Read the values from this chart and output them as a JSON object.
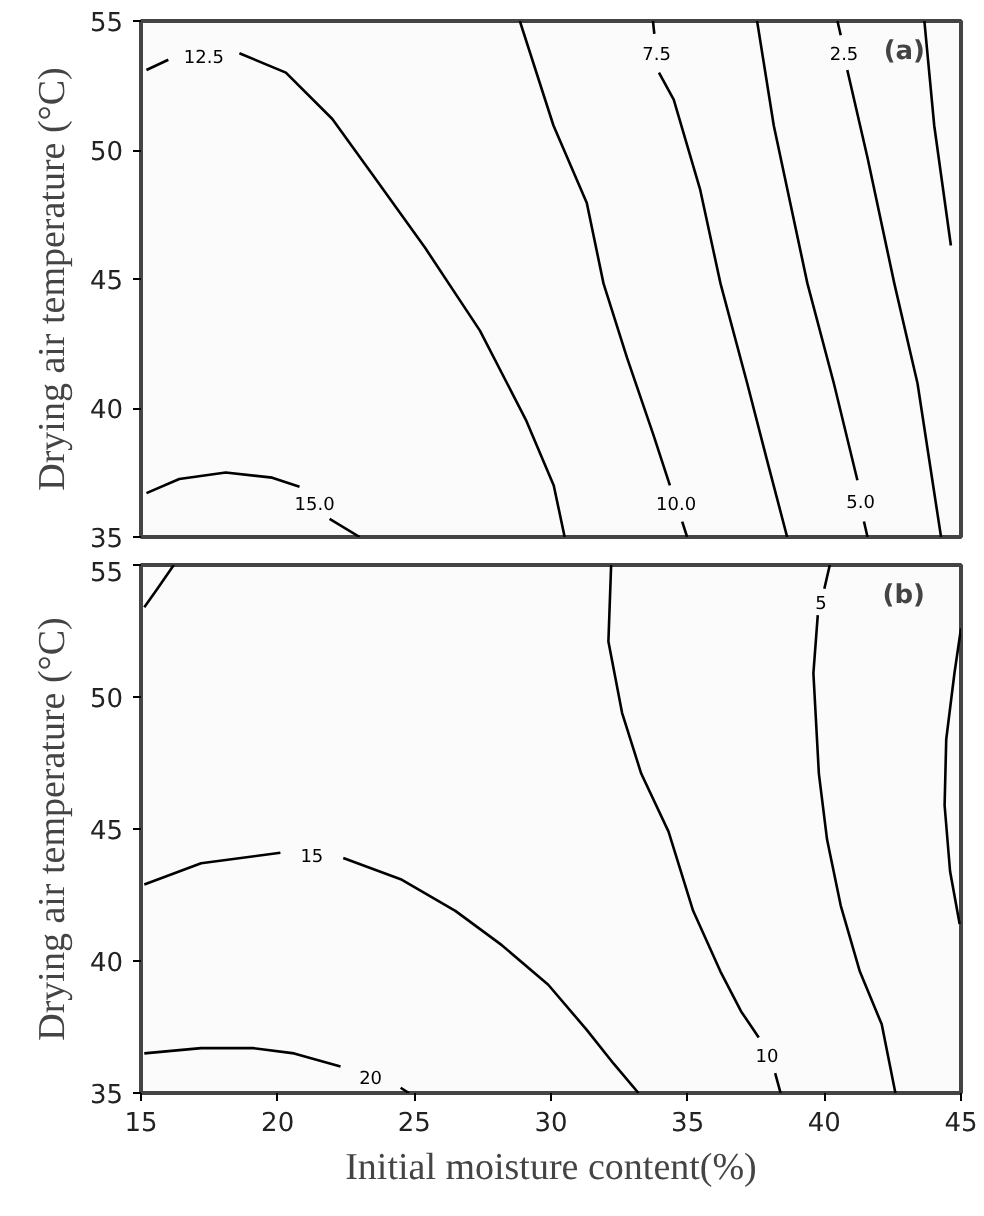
{
  "chart_data": [
    {
      "type": "line",
      "ylabel": "Drying air temperature (°C)",
      "annotations": [
        "(a)"
      ],
      "xlim": [
        15,
        45
      ],
      "ylim": [
        35,
        55
      ],
      "yticks": [
        35,
        40,
        45,
        50,
        55
      ],
      "tick_labels": "y",
      "grid": false,
      "series": [
        {
          "name": "12.5",
          "color": "#000000",
          "x": [
            15.2,
            16.0,
            17.2,
            18.6,
            20.3,
            22.0,
            23.5,
            25.4,
            27.4,
            29.1,
            30.1,
            30.5
          ],
          "values": [
            53.1,
            53.5,
            null,
            53.75,
            53.0,
            51.2,
            49.0,
            46.2,
            43.0,
            39.5,
            37.0,
            35.0
          ]
        },
        {
          "name": "15.0",
          "color": "#000000",
          "x": [
            15.2,
            16.4,
            18.1,
            19.8,
            20.8,
            21.3,
            21.9,
            23.0
          ],
          "values": [
            36.7,
            37.25,
            37.5,
            37.3,
            36.95,
            null,
            35.7,
            35.0
          ]
        },
        {
          "name": "10.0",
          "color": "#000000",
          "x": [
            28.86,
            30.09,
            31.31,
            31.92,
            32.78,
            33.75,
            34.35,
            34.5,
            34.8,
            34.98
          ],
          "values": [
            55.0,
            50.95,
            47.95,
            44.83,
            41.95,
            38.95,
            37.0,
            null,
            35.6,
            35.0
          ]
        },
        {
          "name": "7.5",
          "color": "#000000",
          "x": [
            33.73,
            33.78,
            33.85,
            33.95,
            34.49,
            35.46,
            36.2,
            37.18,
            37.91,
            38.64
          ],
          "values": [
            55.0,
            54.5,
            null,
            53.0,
            51.95,
            48.45,
            44.83,
            40.95,
            37.95,
            35.0
          ]
        },
        {
          "name": "5.0",
          "color": "#000000",
          "x": [
            37.54,
            38.15,
            39.38,
            40.35,
            41.21,
            41.3,
            41.45,
            41.58
          ],
          "values": [
            55.0,
            50.95,
            44.83,
            40.95,
            37.2,
            null,
            35.6,
            35.0
          ]
        },
        {
          "name": "2.5",
          "color": "#000000",
          "x": [
            40.48,
            40.6,
            40.7,
            40.84,
            41.58,
            42.56,
            43.41,
            44.27
          ],
          "values": [
            55.0,
            54.45,
            null,
            53.1,
            49.7,
            44.83,
            40.95,
            35.0
          ]
        },
        {
          "color": "#000000",
          "x": [
            43.66,
            44.02,
            44.63
          ],
          "values": [
            55.0,
            50.95,
            46.3
          ]
        }
      ]
    },
    {
      "type": "line",
      "xlabel": "Initial moisture content(%)",
      "ylabel": "Drying air temperature (°C)",
      "annotations": [
        "(b)"
      ],
      "xlim": [
        15,
        45
      ],
      "ylim": [
        35,
        55
      ],
      "xticks": [
        15,
        20,
        25,
        30,
        35,
        40,
        45
      ],
      "yticks": [
        35,
        40,
        45,
        50,
        55
      ],
      "grid": false,
      "series": [
        {
          "color": "#000000",
          "x": [
            15.12,
            15.6,
            16.2
          ],
          "values": [
            53.4,
            54.1,
            55.0
          ]
        },
        {
          "name": "15",
          "color": "#000000",
          "x": [
            15.12,
            17.2,
            20.1,
            21.2,
            22.4,
            24.5,
            26.5,
            28.2,
            29.9,
            31.3,
            32.3,
            33.2
          ],
          "values": [
            42.9,
            43.7,
            44.1,
            null,
            43.9,
            43.1,
            41.9,
            40.6,
            39.1,
            37.4,
            36.1,
            35.0
          ]
        },
        {
          "name": "20",
          "color": "#000000",
          "x": [
            15.12,
            17.2,
            19.1,
            20.6,
            22.3,
            23.4,
            24.5,
            24.8
          ],
          "values": [
            36.5,
            36.7,
            36.7,
            36.5,
            36.0,
            null,
            35.2,
            35.0
          ]
        },
        {
          "name": "10",
          "color": "#000000",
          "x": [
            32.2,
            32.1,
            32.6,
            33.3,
            34.3,
            35.2,
            36.2,
            36.95,
            37.6,
            37.9,
            38.2,
            38.4
          ],
          "values": [
            55.0,
            52.1,
            49.4,
            47.1,
            44.9,
            41.9,
            39.6,
            38.1,
            37.1,
            null,
            35.75,
            35.0
          ]
        },
        {
          "name": "5",
          "color": "#000000",
          "x": [
            40.2,
            40.0,
            39.9,
            39.76,
            39.6,
            39.8,
            40.1,
            40.6,
            41.3,
            42.1,
            42.6
          ],
          "values": [
            55.0,
            54.1,
            null,
            53.1,
            50.9,
            47.1,
            44.6,
            42.1,
            39.6,
            37.6,
            35.0
          ]
        },
        {
          "color": "#000000",
          "x": [
            45.0,
            44.76,
            44.46,
            44.4,
            44.6,
            44.95
          ],
          "values": [
            52.6,
            50.9,
            48.4,
            45.9,
            43.4,
            41.4
          ]
        }
      ]
    }
  ]
}
